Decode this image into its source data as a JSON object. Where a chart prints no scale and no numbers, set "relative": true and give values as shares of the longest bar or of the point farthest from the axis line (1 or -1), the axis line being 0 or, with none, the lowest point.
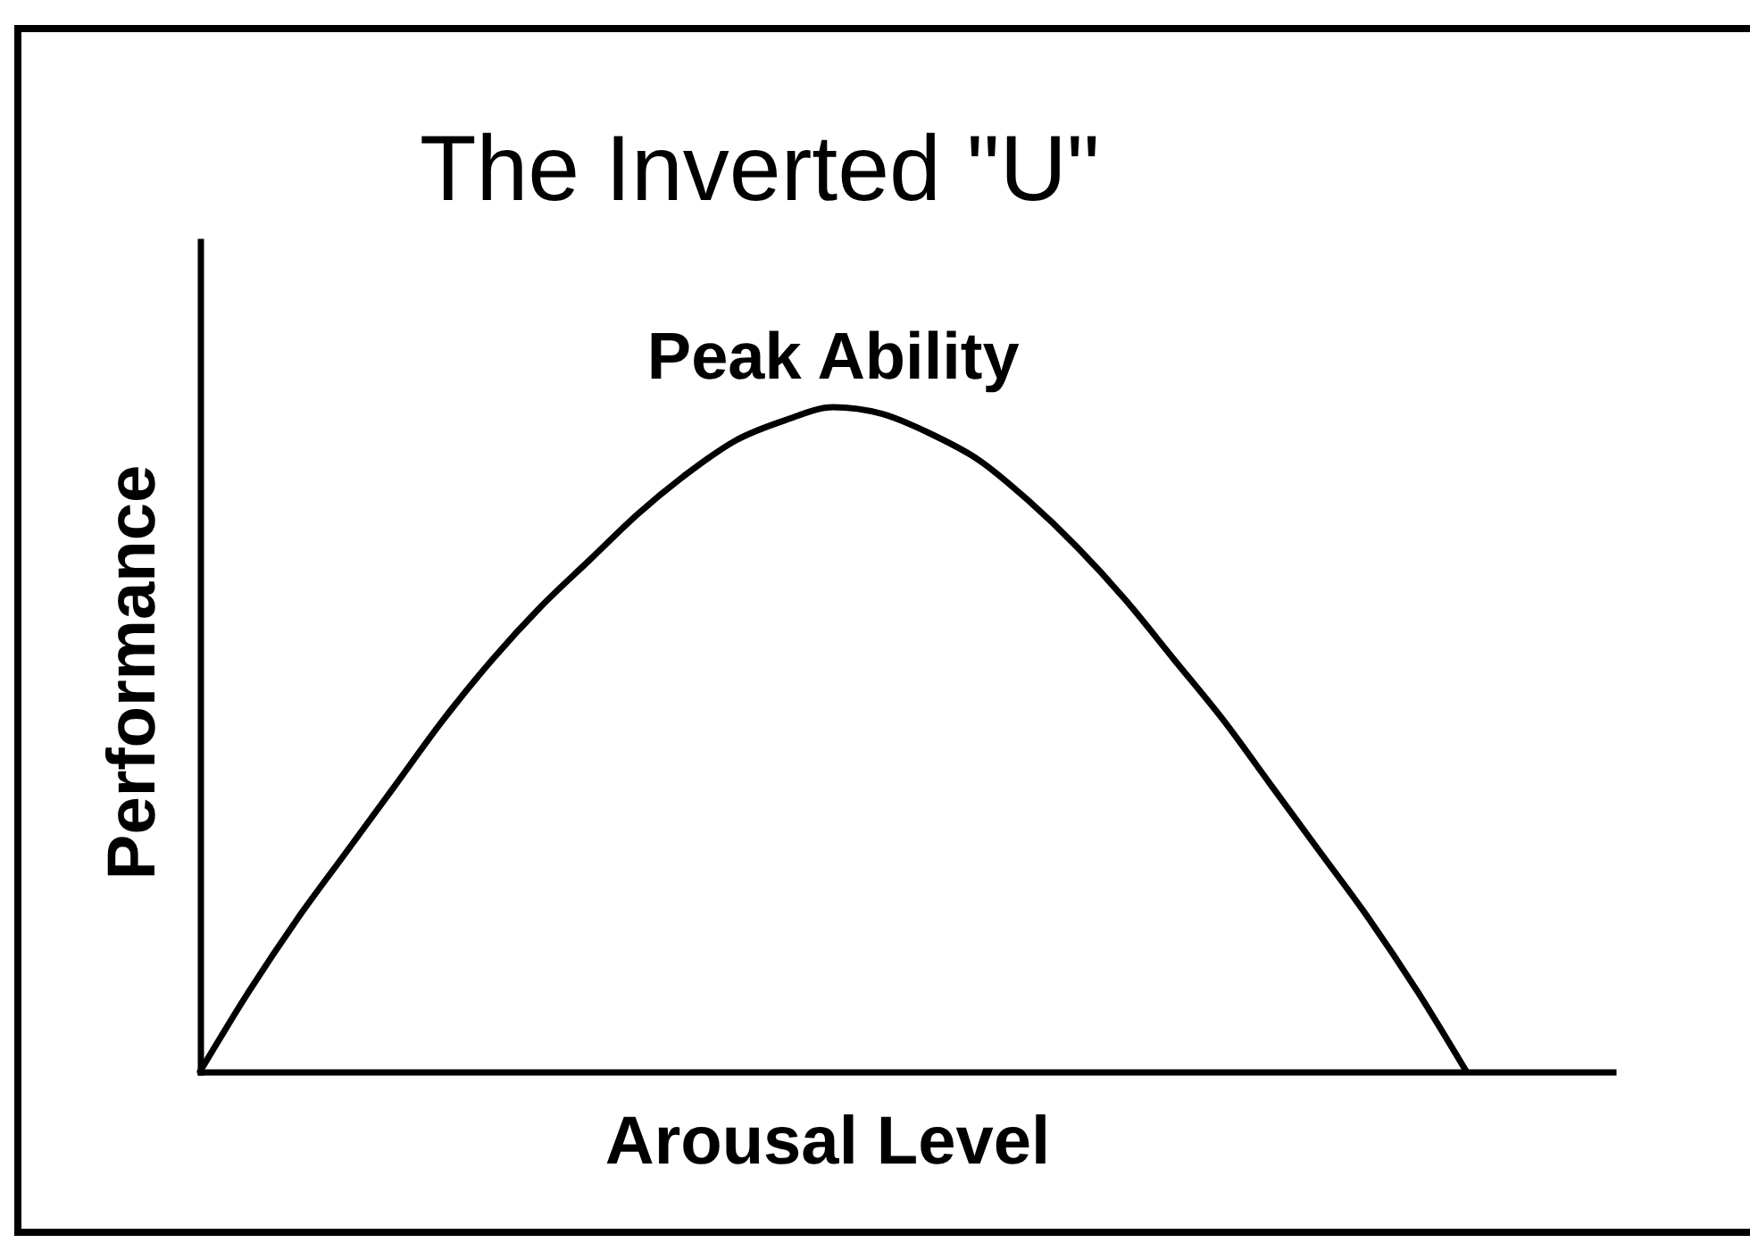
{
  "chart_data": {
    "type": "line",
    "title": "The Inverted \"U\"",
    "xlabel": "Arousal Level",
    "ylabel": "Performance",
    "relative": true,
    "categories": [
      null,
      null,
      null,
      null,
      null,
      null,
      null,
      null,
      null,
      null,
      null,
      null,
      null,
      null,
      null,
      null,
      null,
      null,
      null,
      null,
      null,
      null,
      null,
      null,
      null,
      null,
      null,
      null,
      null,
      null
    ],
    "series": [
      {
        "color": "#000000",
        "values": [
          0,
          0.12,
          0.23,
          0.33,
          0.43,
          0.53,
          0.62,
          0.7,
          0.77,
          0.84,
          0.9,
          0.95,
          0.98,
          1,
          0.99,
          0.96,
          0.92,
          0.86,
          0.79,
          0.71,
          0.62,
          0.53,
          0.43,
          0.33,
          0.23,
          0.12,
          0,
          null,
          null,
          null
        ]
      }
    ],
    "annotations": [
      {
        "text": "Peak Ability",
        "y": 1
      }
    ],
    "marker": "none",
    "line_style": "solid"
  }
}
